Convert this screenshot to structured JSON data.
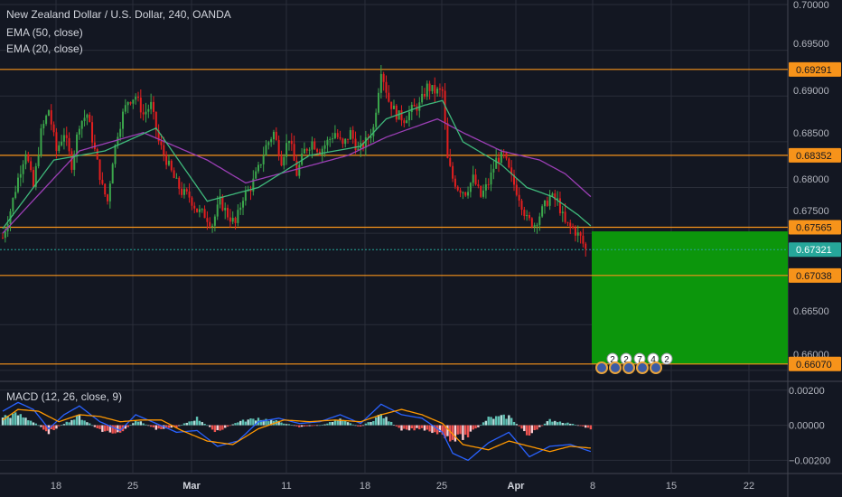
{
  "legend": {
    "title": "New Zealand Dollar / U.S. Dollar, 240, OANDA",
    "ema50": "EMA (50, close)",
    "ema20": "EMA (20, close)",
    "macd": "MACD (12, 26, close, 9)"
  },
  "colors": {
    "background": "#131722",
    "up": "#26a69a",
    "down": "#ef5350",
    "candle_up": "#3ba64b",
    "candle_down": "#e31f1f",
    "level_line": "#f7931a",
    "ema20": "#3fb97b",
    "ema50": "#9c3fb6",
    "target_box": "#0c960c",
    "macd_line": "#2962ff",
    "signal_line": "#ff9800"
  },
  "chart_data": [
    {
      "type": "candlestick",
      "title": "New Zealand Dollar / U.S. Dollar, 240, OANDA",
      "x_tick_labels": [
        "18",
        "25",
        "Mar",
        "11",
        "18",
        "25",
        "Apr",
        "8",
        "15",
        "22"
      ],
      "y_tick_labels": [
        "0.70000",
        "0.69500",
        "0.69000",
        "0.68500",
        "0.68000",
        "0.67500",
        "0.66500",
        "0.66000"
      ],
      "ylim": [
        0.659,
        0.7005
      ],
      "close_path": [
        [
          0,
          0.6745
        ],
        [
          3,
          0.6775
        ],
        [
          6,
          0.681
        ],
        [
          9,
          0.684
        ],
        [
          12,
          0.68
        ],
        [
          15,
          0.686
        ],
        [
          18,
          0.6885
        ],
        [
          21,
          0.684
        ],
        [
          24,
          0.686
        ],
        [
          27,
          0.6825
        ],
        [
          30,
          0.687
        ],
        [
          33,
          0.688
        ],
        [
          36,
          0.684
        ],
        [
          39,
          0.68
        ],
        [
          41,
          0.6785
        ],
        [
          43,
          0.683
        ],
        [
          45,
          0.686
        ],
        [
          47,
          0.688
        ],
        [
          49,
          0.6895
        ],
        [
          52,
          0.69
        ],
        [
          55,
          0.688
        ],
        [
          58,
          0.689
        ],
        [
          61,
          0.685
        ],
        [
          64,
          0.683
        ],
        [
          67,
          0.681
        ],
        [
          70,
          0.6795
        ],
        [
          73,
          0.679
        ],
        [
          76,
          0.6775
        ],
        [
          79,
          0.677
        ],
        [
          82,
          0.676
        ],
        [
          85,
          0.6785
        ],
        [
          88,
          0.677
        ],
        [
          91,
          0.676
        ],
        [
          94,
          0.679
        ],
        [
          97,
          0.68
        ],
        [
          100,
          0.682
        ],
        [
          103,
          0.6845
        ],
        [
          106,
          0.686
        ],
        [
          109,
          0.683
        ],
        [
          112,
          0.6855
        ],
        [
          115,
          0.6815
        ],
        [
          118,
          0.684
        ],
        [
          121,
          0.685
        ],
        [
          124,
          0.684
        ],
        [
          127,
          0.685
        ],
        [
          130,
          0.686
        ],
        [
          133,
          0.6845
        ],
        [
          136,
          0.686
        ],
        [
          139,
          0.684
        ],
        [
          142,
          0.685
        ],
        [
          145,
          0.6865
        ],
        [
          148,
          0.693
        ],
        [
          151,
          0.6895
        ],
        [
          154,
          0.688
        ],
        [
          157,
          0.6875
        ],
        [
          160,
          0.6885
        ],
        [
          163,
          0.689
        ],
        [
          166,
          0.691
        ],
        [
          169,
          0.6905
        ],
        [
          172,
          0.6905
        ],
        [
          174,
          0.683
        ],
        [
          176,
          0.681
        ],
        [
          178,
          0.68
        ],
        [
          181,
          0.6795
        ],
        [
          184,
          0.681
        ],
        [
          187,
          0.679
        ],
        [
          190,
          0.6805
        ],
        [
          193,
          0.683
        ],
        [
          196,
          0.6835
        ],
        [
          199,
          0.681
        ],
        [
          202,
          0.679
        ],
        [
          205,
          0.6765
        ],
        [
          208,
          0.676
        ],
        [
          211,
          0.6775
        ],
        [
          214,
          0.679
        ],
        [
          217,
          0.6785
        ],
        [
          220,
          0.676
        ],
        [
          223,
          0.6755
        ],
        [
          226,
          0.6745
        ],
        [
          228,
          0.6732
        ]
      ],
      "ema20_path": [
        [
          0,
          0.6755
        ],
        [
          20,
          0.683
        ],
        [
          40,
          0.684
        ],
        [
          60,
          0.6865
        ],
        [
          80,
          0.6785
        ],
        [
          100,
          0.68
        ],
        [
          120,
          0.6835
        ],
        [
          140,
          0.6845
        ],
        [
          150,
          0.6875
        ],
        [
          165,
          0.689
        ],
        [
          172,
          0.6895
        ],
        [
          180,
          0.685
        ],
        [
          195,
          0.6825
        ],
        [
          205,
          0.68
        ],
        [
          215,
          0.679
        ],
        [
          225,
          0.677
        ],
        [
          230,
          0.6758
        ]
      ],
      "ema50_path": [
        [
          0,
          0.675
        ],
        [
          30,
          0.684
        ],
        [
          55,
          0.686
        ],
        [
          80,
          0.683
        ],
        [
          95,
          0.6805
        ],
        [
          115,
          0.682
        ],
        [
          135,
          0.6835
        ],
        [
          150,
          0.6855
        ],
        [
          170,
          0.6875
        ],
        [
          180,
          0.686
        ],
        [
          195,
          0.684
        ],
        [
          210,
          0.683
        ],
        [
          220,
          0.6815
        ],
        [
          230,
          0.679
        ]
      ],
      "horizontal_levels": [
        0.69291,
        0.68352,
        0.67565,
        0.67038,
        0.6607
      ],
      "current_price": 0.67321,
      "price_tags": [
        {
          "label": "0.69291",
          "value": 0.69291,
          "color": "#f7931a"
        },
        {
          "label": "0.68352",
          "value": 0.68352,
          "color": "#f7931a"
        },
        {
          "label": "0.67565",
          "value": 0.67565,
          "color": "#f7931a"
        },
        {
          "label": "0.67321",
          "value": 0.67321,
          "color": "#26a69a"
        },
        {
          "label": "0.67038",
          "value": 0.67038,
          "color": "#f7931a"
        },
        {
          "label": "0.66070",
          "value": 0.6607,
          "color": "#f7931a"
        }
      ],
      "target_zone": {
        "from": 0.6607,
        "to": 0.6752
      },
      "event_markers": [
        "2",
        "2",
        "7",
        "4",
        "2"
      ]
    },
    {
      "type": "line",
      "title": "MACD (12, 26, close, 9)",
      "y_tick_labels": [
        "0.00200",
        "0.00000",
        "−0.00200"
      ],
      "ylim": [
        -0.0027,
        0.0024
      ],
      "series": [
        {
          "values_path": [
            [
              0,
              0.0008
            ],
            [
              6,
              0.0013
            ],
            [
              12,
              0.0009
            ],
            [
              18,
              -0.0002
            ],
            [
              24,
              0.0006
            ],
            [
              30,
              0.0011
            ],
            [
              38,
              0.0002
            ],
            [
              46,
              -0.0003
            ],
            [
              52,
              0.0006
            ],
            [
              60,
              0.0001
            ],
            [
              68,
              -0.0004
            ],
            [
              76,
              -0.0003
            ],
            [
              84,
              -0.0012
            ],
            [
              92,
              -0.0009
            ],
            [
              100,
              0.0002
            ],
            [
              108,
              0.0004
            ],
            [
              116,
              0.0001
            ],
            [
              124,
              0.0002
            ],
            [
              132,
              0.0006
            ],
            [
              140,
              0.0001
            ],
            [
              148,
              0.0012
            ],
            [
              156,
              0.0006
            ],
            [
              164,
              0.0004
            ],
            [
              172,
              -0.0004
            ],
            [
              176,
              -0.0016
            ],
            [
              182,
              -0.002
            ],
            [
              190,
              -0.001
            ],
            [
              198,
              -0.0004
            ],
            [
              206,
              -0.0018
            ],
            [
              214,
              -0.0012
            ],
            [
              222,
              -0.0011
            ],
            [
              230,
              -0.0015
            ]
          ]
        },
        {
          "values_path": [
            [
              0,
              0.0003
            ],
            [
              6,
              0.0009
            ],
            [
              14,
              0.0008
            ],
            [
              22,
              0.0002
            ],
            [
              30,
              0.0006
            ],
            [
              38,
              0.0005
            ],
            [
              46,
              0.0002
            ],
            [
              54,
              0.0003
            ],
            [
              62,
              0.0003
            ],
            [
              70,
              -0.0003
            ],
            [
              80,
              -0.0009
            ],
            [
              90,
              -0.0011
            ],
            [
              100,
              -0.0002
            ],
            [
              110,
              0.0003
            ],
            [
              120,
              0.0002
            ],
            [
              130,
              0.0003
            ],
            [
              140,
              0.0002
            ],
            [
              148,
              0.0006
            ],
            [
              156,
              0.0009
            ],
            [
              164,
              0.0006
            ],
            [
              172,
              0.0001
            ],
            [
              180,
              -0.0011
            ],
            [
              190,
              -0.0014
            ],
            [
              198,
              -0.0009
            ],
            [
              206,
              -0.0012
            ],
            [
              214,
              -0.0015
            ],
            [
              222,
              -0.0012
            ],
            [
              230,
              -0.0013
            ]
          ]
        }
      ],
      "histogram_path": [
        [
          0,
          0.0005
        ],
        [
          6,
          0.0006
        ],
        [
          12,
          0.0002
        ],
        [
          18,
          -0.0004
        ],
        [
          24,
          0.0001
        ],
        [
          30,
          0.0005
        ],
        [
          38,
          -0.0003
        ],
        [
          46,
          -0.0005
        ],
        [
          52,
          0.0003
        ],
        [
          60,
          -0.0002
        ],
        [
          68,
          -0.0001
        ],
        [
          76,
          0.0004
        ],
        [
          84,
          -0.0004
        ],
        [
          92,
          0.0002
        ],
        [
          100,
          0.0004
        ],
        [
          108,
          0.0002
        ],
        [
          116,
          -0.0001
        ],
        [
          124,
          0.0
        ],
        [
          132,
          0.0003
        ],
        [
          140,
          -0.0001
        ],
        [
          148,
          0.0006
        ],
        [
          156,
          -0.0003
        ],
        [
          164,
          -0.0002
        ],
        [
          172,
          -0.0005
        ],
        [
          176,
          -0.0008
        ],
        [
          182,
          -0.0006
        ],
        [
          190,
          0.0004
        ],
        [
          198,
          0.0005
        ],
        [
          206,
          -0.0006
        ],
        [
          214,
          0.0003
        ],
        [
          222,
          0.0001
        ],
        [
          230,
          -0.0002
        ]
      ]
    }
  ]
}
